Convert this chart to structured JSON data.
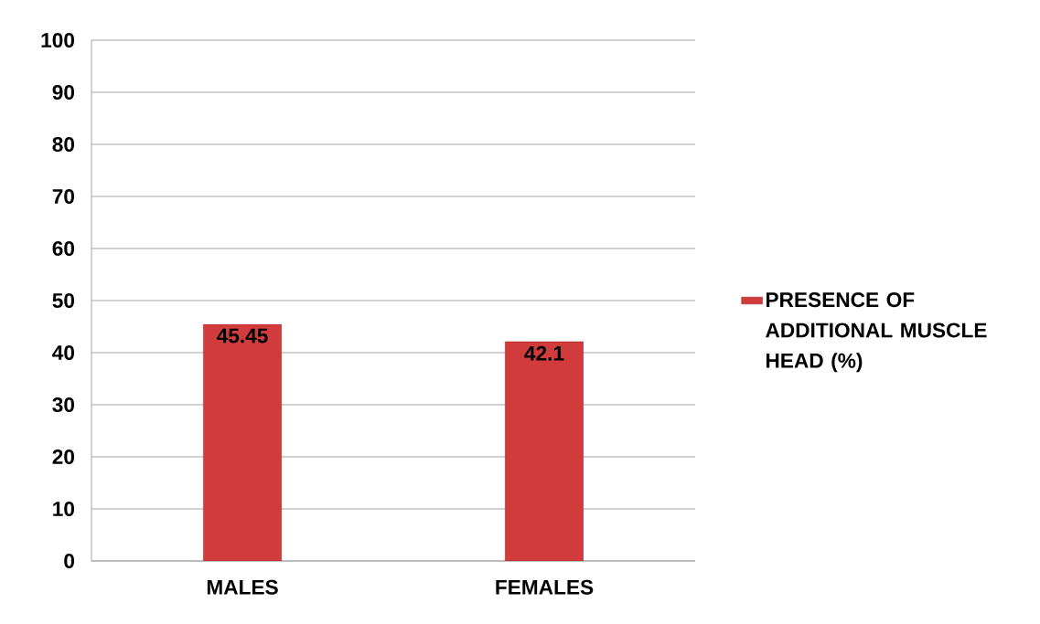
{
  "chart_data": {
    "type": "bar",
    "categories": [
      "MALES",
      "FEMALES"
    ],
    "series": [
      {
        "name": "PRESENCE OF ADDITIONAL MUSCLE HEAD (%)",
        "color": "#d23b3b",
        "values": [
          45.45,
          42.1
        ]
      }
    ],
    "ylim": [
      0,
      100
    ],
    "yticks": [
      0,
      10,
      20,
      30,
      40,
      50,
      60,
      70,
      80,
      90,
      100
    ],
    "grid": "y",
    "legend": "right",
    "data_labels": true
  }
}
